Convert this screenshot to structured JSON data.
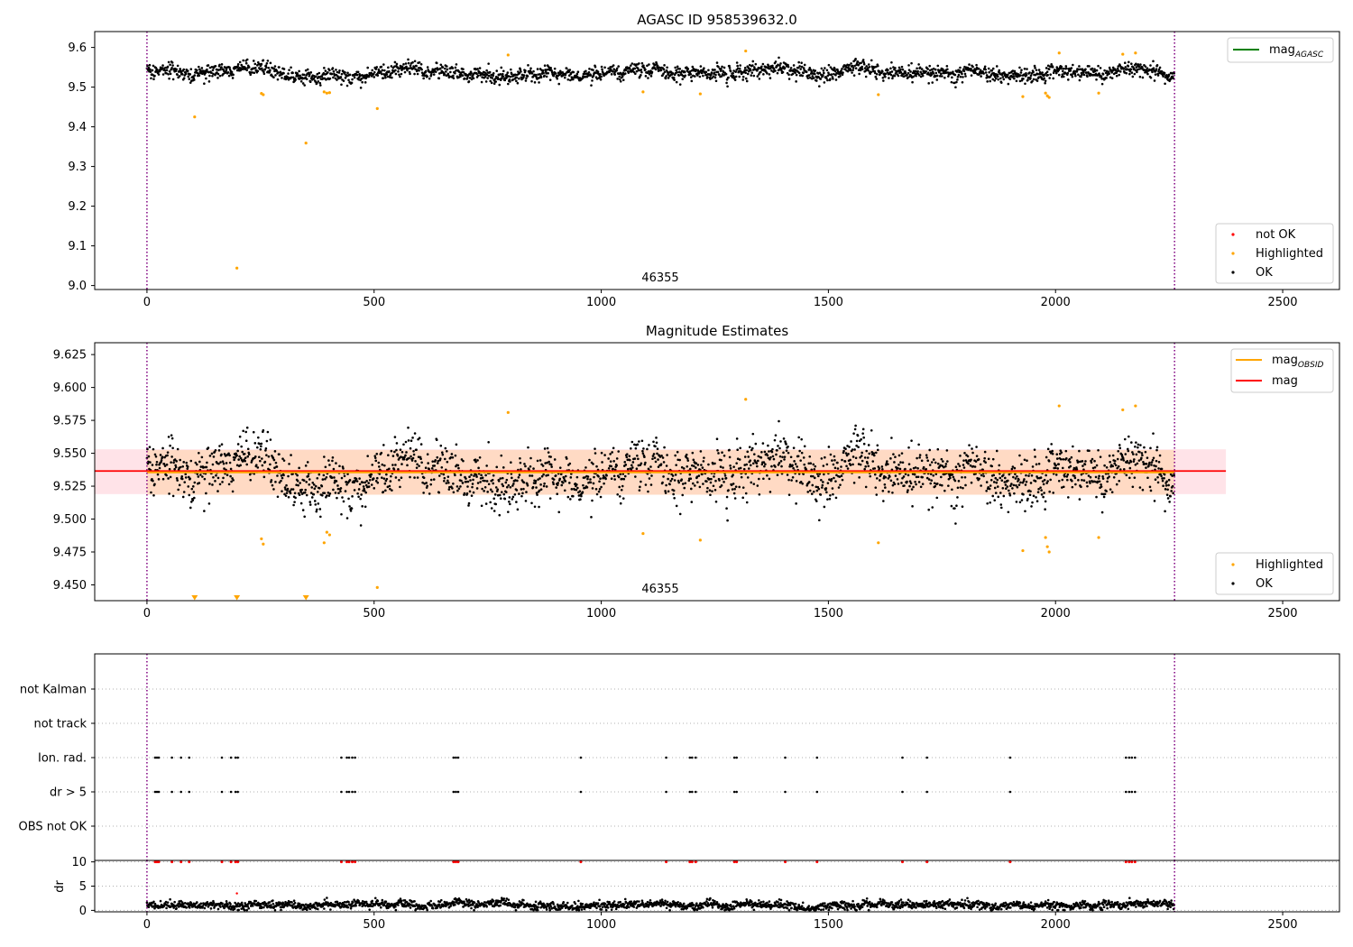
{
  "colors": {
    "ok": "#000000",
    "highlighted": "#ffa500",
    "not_ok": "#ff0000",
    "mag_agasc": "#008000",
    "mag_obsid": "#ffa500",
    "mag": "#ff0000",
    "obs_band": "#ffd8c0",
    "mag_band": "#ffc0cb",
    "boundary": "#800080",
    "grid": "#b0b0b0"
  },
  "chart_data": [
    {
      "id": "agasc",
      "type": "scatter",
      "title": "AGASC ID 958539632.0",
      "xlim": [
        -115,
        2625
      ],
      "ylim": [
        8.99,
        9.64
      ],
      "xticks": [
        0,
        500,
        1000,
        1500,
        2000,
        2500
      ],
      "yticks": [
        9.0,
        9.1,
        9.2,
        9.3,
        9.4,
        9.5,
        9.6
      ],
      "ytick_labels": [
        "9.0",
        "9.1",
        "9.2",
        "9.3",
        "9.4",
        "9.5",
        "9.6"
      ],
      "obsid_label": {
        "text": "46355",
        "x": 1135
      },
      "obs_boundaries": [
        0,
        2262
      ],
      "legend_lines": [
        {
          "label": "mag",
          "subscript": "AGASC",
          "color_key": "mag_agasc"
        }
      ],
      "legend_points": [
        {
          "label": "not OK",
          "color_key": "not_ok"
        },
        {
          "label": "Highlighted",
          "color_key": "highlighted"
        },
        {
          "label": "OK",
          "color_key": "ok"
        }
      ],
      "series": [
        {
          "name": "OK",
          "generator": {
            "n": 2262,
            "base": 9.537,
            "noise": 0.012,
            "seed": 7
          }
        },
        {
          "name": "Highlighted",
          "x": [
            105,
            198,
            252,
            256,
            350,
            390,
            396,
            402,
            507,
            795,
            1092,
            1218,
            1318,
            1610,
            1928,
            1978,
            1982,
            1986,
            2008,
            2095,
            2148,
            2176
          ],
          "y": [
            9.425,
            9.044,
            9.484,
            9.481,
            9.359,
            9.488,
            9.485,
            9.486,
            9.446,
            9.581,
            9.488,
            9.483,
            9.591,
            9.481,
            9.476,
            9.485,
            9.478,
            9.474,
            9.586,
            9.485,
            9.583,
            9.586
          ]
        }
      ]
    },
    {
      "id": "estimates",
      "type": "scatter",
      "title": "Magnitude Estimates",
      "xlim": [
        -115,
        2625
      ],
      "ylim": [
        9.438,
        9.634
      ],
      "xticks": [
        0,
        500,
        1000,
        1500,
        2000,
        2500
      ],
      "yticks": [
        9.45,
        9.475,
        9.5,
        9.525,
        9.55,
        9.575,
        9.6,
        9.625
      ],
      "ytick_labels": [
        "9.450",
        "9.475",
        "9.500",
        "9.525",
        "9.550",
        "9.575",
        "9.600",
        "9.625"
      ],
      "obsid_label": {
        "text": "46355",
        "x": 1135
      },
      "obs_boundaries": [
        0,
        2262
      ],
      "mag_obsid": {
        "value": 9.5355,
        "band": [
          9.5185,
          9.5525
        ],
        "x_range": [
          0,
          2262
        ]
      },
      "mag": {
        "value": 9.5365,
        "band": [
          9.519,
          9.553
        ],
        "x_range": [
          -115,
          2375
        ]
      },
      "legend_lines": [
        {
          "label": "mag",
          "subscript": "OBSID",
          "color_key": "mag_obsid"
        },
        {
          "label": "mag",
          "subscript": "",
          "color_key": "mag"
        }
      ],
      "legend_points": [
        {
          "label": "Highlighted",
          "color_key": "highlighted"
        },
        {
          "label": "OK",
          "color_key": "ok"
        }
      ],
      "series": [
        {
          "name": "OK",
          "generator": {
            "n": 2262,
            "base": 9.5355,
            "noise": 0.0125,
            "seed": 7
          }
        },
        {
          "name": "Highlighted",
          "x": [
            252,
            256,
            390,
            396,
            402,
            507,
            795,
            1092,
            1218,
            1318,
            1610,
            1928,
            1978,
            1982,
            1986,
            2008,
            2095,
            2148,
            2176
          ],
          "y": [
            9.485,
            9.481,
            9.482,
            9.49,
            9.488,
            9.448,
            9.581,
            9.489,
            9.484,
            9.591,
            9.482,
            9.476,
            9.486,
            9.479,
            9.475,
            9.586,
            9.486,
            9.583,
            9.586
          ]
        },
        {
          "name": "Highlighted (below range)",
          "marker": "triangle-down",
          "x": [
            105,
            198,
            350
          ]
        }
      ]
    },
    {
      "id": "flags",
      "type": "scatter",
      "xlim": [
        -115,
        2625
      ],
      "categories": [
        "not Kalman",
        "not track",
        "Ion. rad.",
        "dr > 5",
        "OBS not OK"
      ],
      "obs_boundaries": [
        0,
        2262
      ],
      "flag_x": [
        18,
        22,
        26,
        55,
        75,
        93,
        165,
        185,
        195,
        200,
        428,
        440,
        445,
        452,
        458,
        675,
        680,
        685,
        955,
        1143,
        1195,
        1200,
        1208,
        1293,
        1298,
        1405,
        1475,
        1663,
        1717,
        1900,
        2155,
        2162,
        2168,
        2175
      ],
      "flags": {
        "not Kalman": [],
        "not track": [],
        "Ion. rad.": "flag_x",
        "dr > 5": "flag_x",
        "OBS not OK": []
      }
    },
    {
      "id": "dr",
      "type": "scatter",
      "ylabel": "dr",
      "xlim": [
        -115,
        2625
      ],
      "ylim": [
        -0.3,
        10.3
      ],
      "yticks": [
        0,
        5,
        10
      ],
      "ytick_labels": [
        "0",
        "5",
        "10"
      ],
      "xticks": [
        0,
        500,
        1000,
        1500,
        2000,
        2500
      ],
      "obs_boundaries": [
        0,
        2262
      ],
      "series": [
        {
          "name": "dr",
          "generator": {
            "n": 2262,
            "base": 1.1,
            "noise": 0.55,
            "seed": 11
          }
        },
        {
          "name": "not OK (clipped at 10)",
          "x_ref": "flag_x",
          "y": 10
        },
        {
          "name": "outlier",
          "x": [
            198
          ],
          "y": [
            3.5
          ]
        }
      ]
    }
  ]
}
